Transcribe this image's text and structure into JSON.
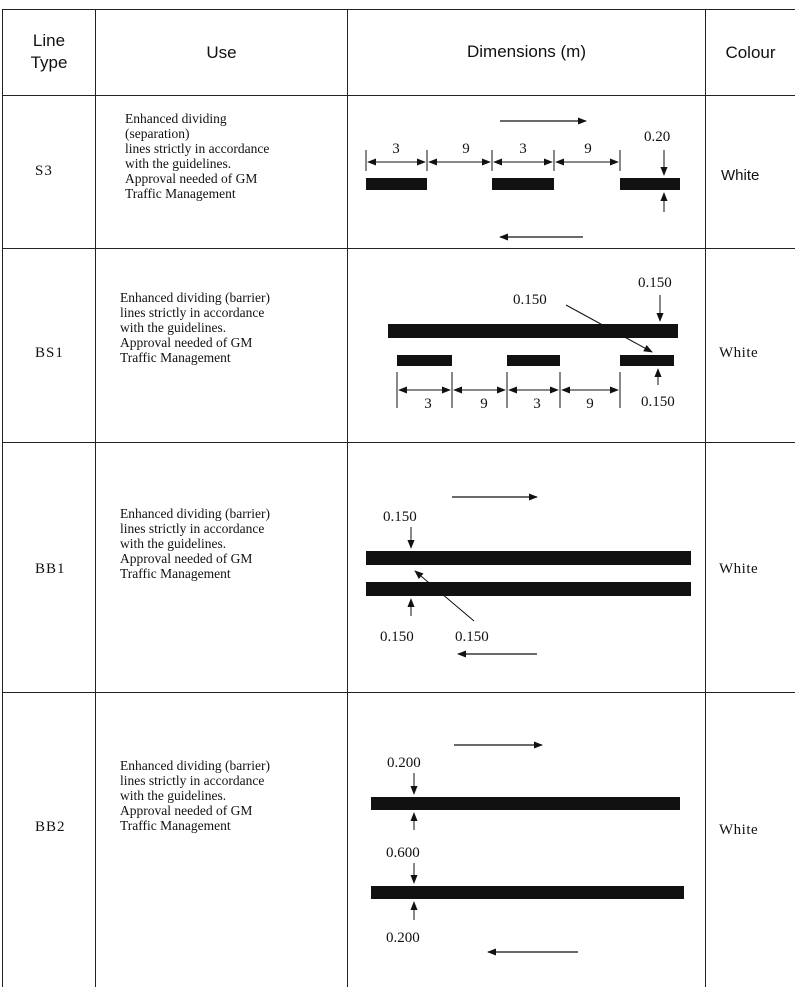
{
  "header": {
    "line_type": "Line\nType",
    "use": "Use",
    "dimensions": "Dimensions (m)",
    "colour": "Colour"
  },
  "rows": [
    {
      "type": "S3",
      "use": "Enhanced dividing\n(separation)\nlines strictly in accordance\nwith the guidelines.\nApproval needed of GM\nTraffic Management",
      "colour": "White",
      "dims": {
        "seg1": "3",
        "gap1": "9",
        "seg2": "3",
        "gap2": "9",
        "width": "0.20"
      }
    },
    {
      "type": "BS1",
      "use": "Enhanced dividing (barrier)\nlines strictly in accordance\nwith the guidelines.\nApproval needed of GM\nTraffic Management",
      "colour": "White",
      "dims": {
        "top_width": "0.150",
        "gap": "0.150",
        "bottom_width": "0.150",
        "seg1": "3",
        "gap1": "9",
        "seg2": "3",
        "gap2": "9"
      }
    },
    {
      "type": "BB1",
      "use": "Enhanced dividing (barrier)\nlines strictly in accordance\nwith the guidelines.\nApproval needed of GM\nTraffic Management",
      "colour": "White",
      "dims": {
        "top_width": "0.150",
        "bottom_width": "0.150",
        "gap": "0.150"
      }
    },
    {
      "type": "BB2",
      "use": "Enhanced dividing (barrier)\nlines strictly in accordance\nwith the guidelines.\nApproval needed of GM\nTraffic Management",
      "colour": "White",
      "dims": {
        "top_width": "0.200",
        "gap": "0.600",
        "bottom_width": "0.200"
      }
    }
  ]
}
